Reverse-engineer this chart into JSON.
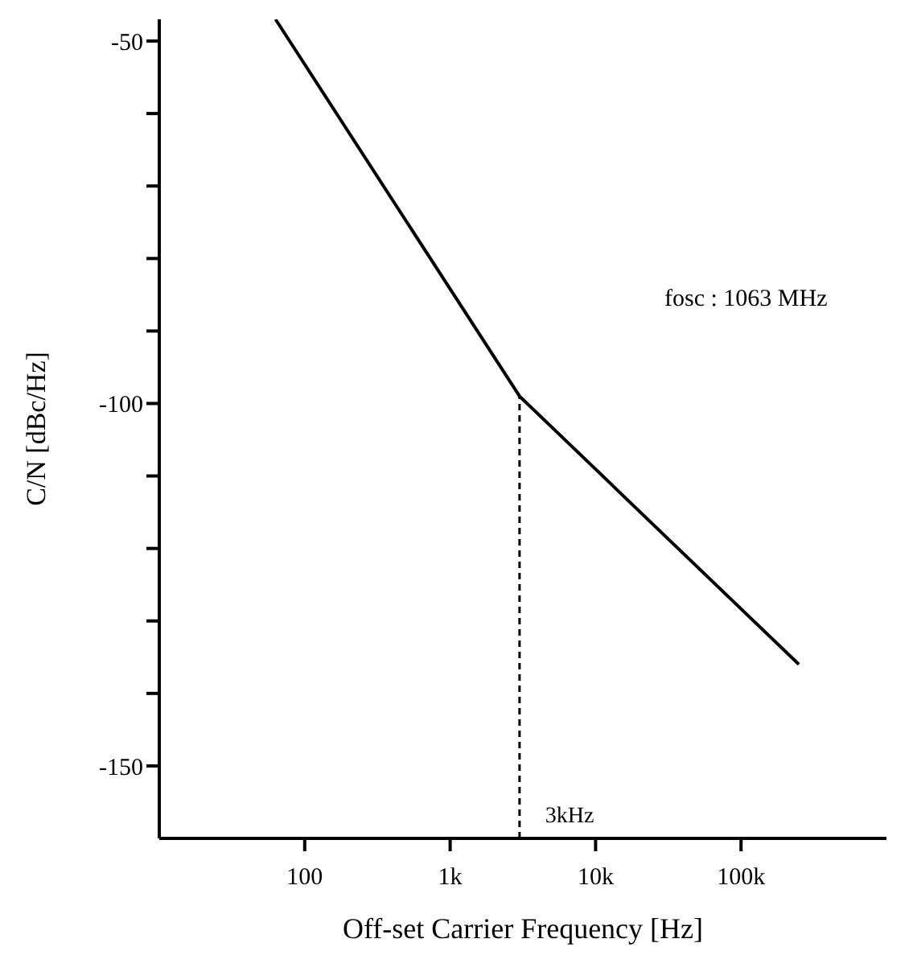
{
  "chart_data": {
    "type": "line",
    "xlabel": "Off-set Carrier Frequency     [Hz]",
    "ylabel": "C/N    [dBc/Hz]",
    "log": "x",
    "xlim": [
      10,
      1000000
    ],
    "ylim": [
      -160,
      -47
    ],
    "xticks": [
      100,
      {
        "value": 1000,
        "label": "1k"
      },
      {
        "value": 10000,
        "label": "10k"
      },
      {
        "value": 100000,
        "label": "100k"
      }
    ],
    "yticks": [
      -50,
      {
        "value": -60,
        "label": null
      },
      {
        "value": -70,
        "label": null
      },
      {
        "value": -80,
        "label": null
      },
      {
        "value": -90,
        "label": null
      },
      -100,
      {
        "value": -110,
        "label": null
      },
      {
        "value": -120,
        "label": null
      },
      {
        "value": -130,
        "label": null
      },
      {
        "value": -140,
        "label": null
      },
      -150
    ],
    "series": [
      {
        "color": "#000000",
        "x": [
          63,
          3000,
          250000
        ],
        "values": [
          -47,
          -99,
          -136
        ]
      }
    ],
    "ref_lines": [
      {
        "axis": "x",
        "value": 3000,
        "label": "3kHz",
        "color": "#000000",
        "line_style": "dashed"
      }
    ],
    "annotations": [
      "fosc : 1063 MHz"
    ],
    "grid": false,
    "marker": "none",
    "line_style": "solid"
  }
}
